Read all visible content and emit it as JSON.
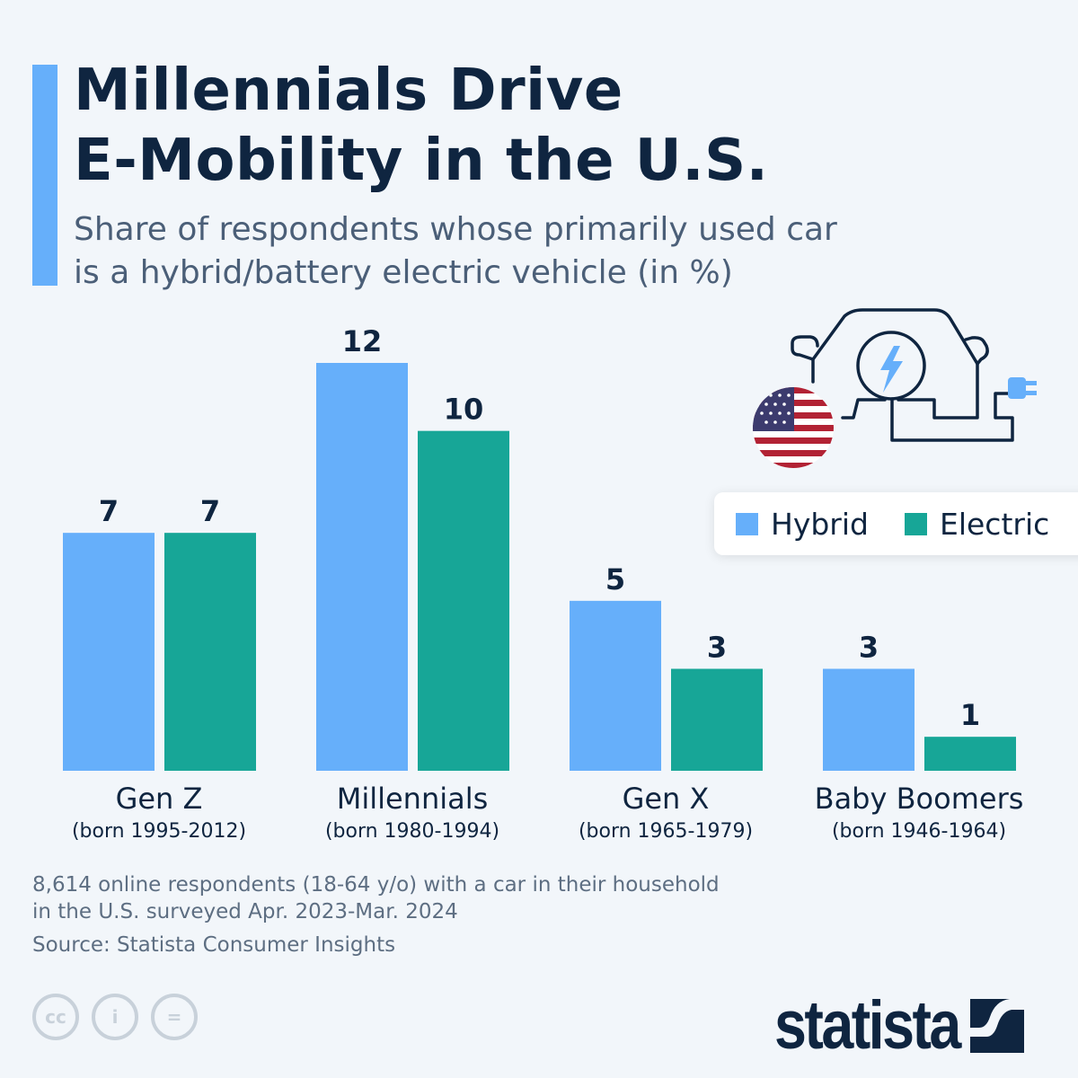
{
  "header": {
    "title_line1": "Millennials Drive",
    "title_line2": "E-Mobility in the U.S.",
    "subtitle_line1": "Share of respondents whose primarily used car",
    "subtitle_line2": "is a hybrid/battery electric vehicle (in %)"
  },
  "colors": {
    "hybrid": "#66affa",
    "electric": "#17a697",
    "text": "#0f2540",
    "accent": "#66affa"
  },
  "chart_data": {
    "type": "bar",
    "categories": [
      "Gen Z",
      "Millennials",
      "Gen X",
      "Baby Boomers"
    ],
    "category_sublabels": [
      "(born 1995-2012)",
      "(born 1980-1994)",
      "(born 1965-1979)",
      "(born 1946-1964)"
    ],
    "series": [
      {
        "name": "Hybrid",
        "values": [
          7,
          12,
          5,
          3
        ]
      },
      {
        "name": "Electric",
        "values": [
          7,
          10,
          3,
          1
        ]
      }
    ],
    "ylabel": "",
    "xlabel": "",
    "ylim": [
      0,
      12
    ],
    "grid": false,
    "legend": "right",
    "data_labels": true
  },
  "legend": {
    "hybrid": "Hybrid",
    "electric": "Electric"
  },
  "footer": {
    "note_line1": "8,614 online respondents (18-64 y/o) with a car in their household",
    "note_line2": "in the U.S. surveyed Apr. 2023-Mar. 2024",
    "source": "Source: Statista Consumer Insights",
    "cc_icons": [
      "cc",
      "i",
      "="
    ],
    "logo": "statista"
  },
  "illustration": {
    "icons": [
      "electric-car-icon",
      "us-flag-icon",
      "lightning-icon",
      "plug-icon"
    ]
  }
}
